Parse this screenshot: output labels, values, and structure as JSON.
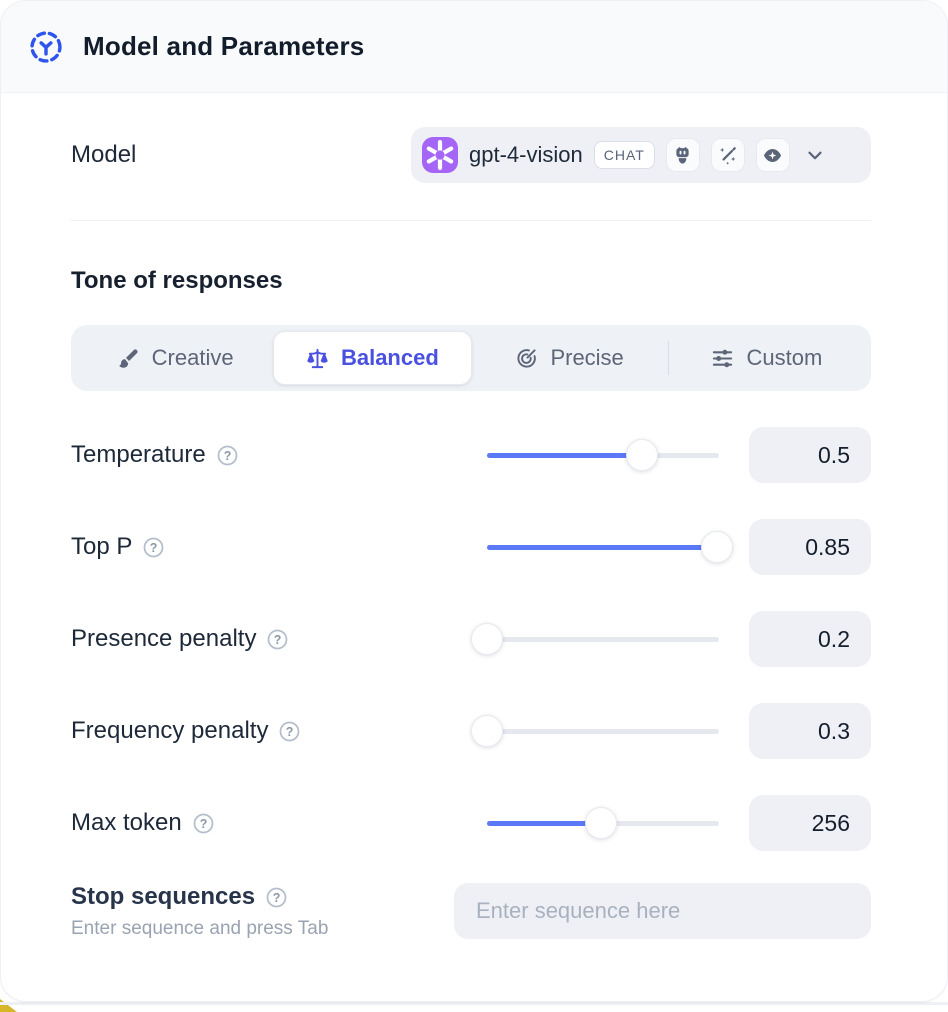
{
  "header": {
    "title": "Model and Parameters",
    "icon": "model-hub-icon"
  },
  "model_row": {
    "label": "Model",
    "select": {
      "provider_icon": "openai-logo",
      "value": "gpt-4-vision",
      "badge": "CHAT",
      "capability_icons": [
        "bot-icon",
        "wand-sparkles-icon",
        "vision-eye-icon"
      ],
      "chevron_icon": "chevron-down-icon"
    }
  },
  "tone": {
    "heading": "Tone of responses",
    "options": [
      {
        "label": "Creative",
        "icon": "brush-icon",
        "selected": false
      },
      {
        "label": "Balanced",
        "icon": "scale-icon",
        "selected": true
      },
      {
        "label": "Precise",
        "icon": "goal-target-icon",
        "selected": false
      },
      {
        "label": "Custom",
        "icon": "sliders-icon",
        "selected": false
      }
    ]
  },
  "sliders": [
    {
      "label": "Temperature",
      "value": "0.5",
      "fraction": 0.67
    },
    {
      "label": "Top P",
      "value": "0.85",
      "fraction": 0.99
    },
    {
      "label": "Presence penalty",
      "value": "0.2",
      "fraction": 0.0
    },
    {
      "label": "Frequency penalty",
      "value": "0.3",
      "fraction": 0.0
    },
    {
      "label": "Max token",
      "value": "256",
      "fraction": 0.49
    }
  ],
  "stop": {
    "label": "Stop sequences",
    "hint": "Enter sequence and press Tab",
    "placeholder": "Enter sequence here"
  },
  "colors": {
    "accent_blue": "#2f54eb",
    "selected_indigo": "#4a50e0",
    "slider_blue": "#5b79f7",
    "openai_purple": "#a566f7",
    "control_bg": "#eef0f5",
    "header_bg": "#f8fafc",
    "corner_yellow": "#d8b62a"
  }
}
